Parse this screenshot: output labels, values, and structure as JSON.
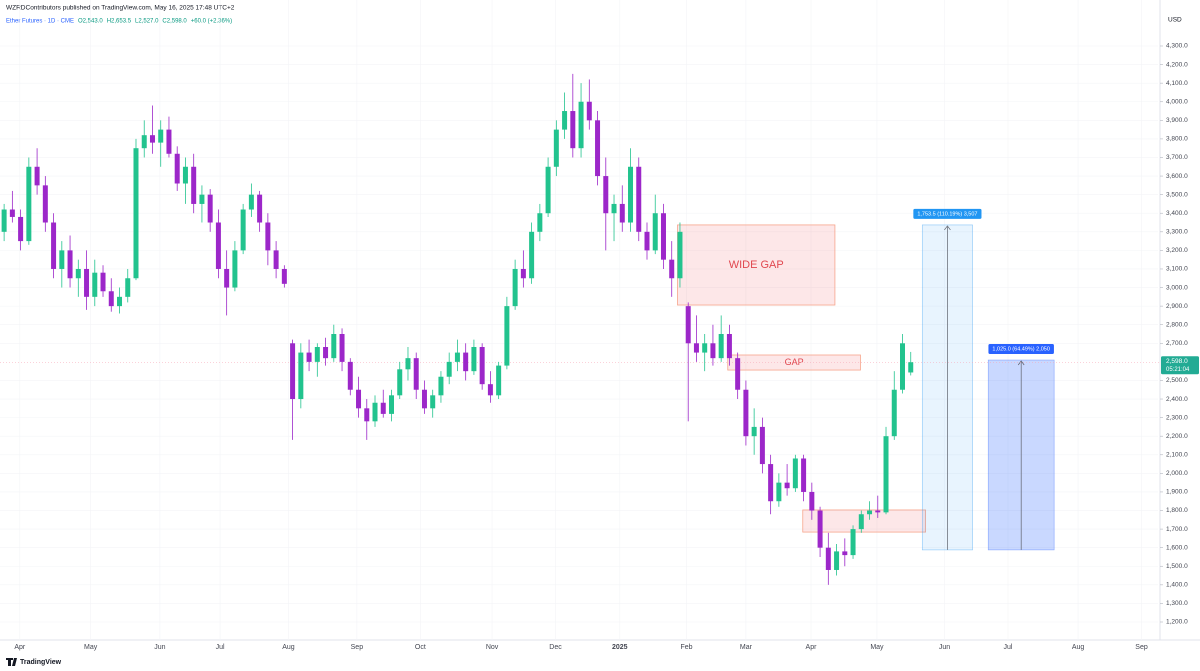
{
  "chart_data": {
    "type": "candlestick",
    "publisher": "WZRDContributors published on TradingView.com, May 16, 2025 17:48 UTC+2",
    "symbol": "Ether Futures · 1D · CME",
    "ohlc_text": [
      "O2,543.0",
      "H2,653.5",
      "L2,527.0",
      "C2,598.0",
      "+60.0 (+2.36%)"
    ],
    "currency": "USD",
    "logo": "TradingView",
    "up_color": "#22c38e",
    "down_color": "#9c27c9",
    "xlim": [
      -0.5,
      140
    ],
    "xticks": [
      {
        "value": 1.9,
        "label": "Apr"
      },
      {
        "value": 10.5,
        "label": "May"
      },
      {
        "value": 18.9,
        "label": "Jun"
      },
      {
        "value": 26.2,
        "label": "Jul"
      },
      {
        "value": 34.5,
        "label": "Aug"
      },
      {
        "value": 42.8,
        "label": "Sep"
      },
      {
        "value": 50.5,
        "label": "Oct"
      },
      {
        "value": 59.2,
        "label": "Nov"
      },
      {
        "value": 66.9,
        "label": "Dec"
      },
      {
        "value": 74.7,
        "label": "2025"
      },
      {
        "value": 82.8,
        "label": "Feb"
      },
      {
        "value": 90.0,
        "label": "Mar"
      },
      {
        "value": 97.9,
        "label": "Apr"
      },
      {
        "value": 105.9,
        "label": "May"
      },
      {
        "value": 114.1,
        "label": "Jun"
      },
      {
        "value": 121.8,
        "label": "Jul"
      },
      {
        "value": 130.3,
        "label": "Aug"
      },
      {
        "value": 138.0,
        "label": "Sep"
      }
    ],
    "ylim": [
      1200,
      4300
    ],
    "yticks": [
      {
        "value": 1200,
        "label": "1,200.0"
      },
      {
        "value": 1300,
        "label": "1,300.0"
      },
      {
        "value": 1400,
        "label": "1,400.0"
      },
      {
        "value": 1500,
        "label": "1,500.0"
      },
      {
        "value": 1600,
        "label": "1,600.0"
      },
      {
        "value": 1700,
        "label": "1,700.0"
      },
      {
        "value": 1800,
        "label": "1,800.0"
      },
      {
        "value": 1900,
        "label": "1,900.0"
      },
      {
        "value": 2000,
        "label": "2,000.0"
      },
      {
        "value": 2100,
        "label": "2,100.0"
      },
      {
        "value": 2200,
        "label": "2,200.0"
      },
      {
        "value": 2300,
        "label": "2,300.0"
      },
      {
        "value": 2400,
        "label": "2,400.0"
      },
      {
        "value": 2500,
        "label": "2,500.0"
      },
      {
        "value": 2700,
        "label": "2,700.0"
      },
      {
        "value": 2800,
        "label": "2,800.0"
      },
      {
        "value": 2900,
        "label": "2,900.0"
      },
      {
        "value": 3000,
        "label": "3,000.0"
      },
      {
        "value": 3100,
        "label": "3,100.0"
      },
      {
        "value": 3200,
        "label": "3,200.0"
      },
      {
        "value": 3300,
        "label": "3,300.0"
      },
      {
        "value": 3400,
        "label": "3,400.0"
      },
      {
        "value": 3500,
        "label": "3,500.0"
      },
      {
        "value": 3600,
        "label": "3,600.0"
      },
      {
        "value": 3700,
        "label": "3,700.0"
      },
      {
        "value": 3800,
        "label": "3,800.0"
      },
      {
        "value": 3900,
        "label": "3,900.0"
      },
      {
        "value": 4000,
        "label": "4,000.0"
      },
      {
        "value": 4100,
        "label": "4,100.0"
      },
      {
        "value": 4200,
        "label": "4,200.0"
      },
      {
        "value": 4300,
        "label": "4,300.0"
      }
    ],
    "last_price": {
      "value": 2598,
      "label": "2,598.0"
    },
    "countdown": "05:21:04",
    "candles": [
      [
        3300,
        3450,
        3250,
        3420
      ],
      [
        3420,
        3520,
        3350,
        3380
      ],
      [
        3380,
        3420,
        3200,
        3250
      ],
      [
        3250,
        3700,
        3230,
        3650
      ],
      [
        3650,
        3750,
        3500,
        3550
      ],
      [
        3550,
        3600,
        3300,
        3350
      ],
      [
        3350,
        3400,
        3050,
        3100
      ],
      [
        3100,
        3250,
        3000,
        3200
      ],
      [
        3200,
        3280,
        3000,
        3050
      ],
      [
        3050,
        3150,
        2950,
        3100
      ],
      [
        3100,
        3200,
        2880,
        2950
      ],
      [
        2950,
        3150,
        2900,
        3080
      ],
      [
        3080,
        3120,
        2950,
        2980
      ],
      [
        2980,
        3050,
        2870,
        2900
      ],
      [
        2900,
        3000,
        2860,
        2950
      ],
      [
        2950,
        3100,
        2920,
        3050
      ],
      [
        3050,
        3800,
        3040,
        3750
      ],
      [
        3750,
        3900,
        3700,
        3820
      ],
      [
        3820,
        3980,
        3720,
        3780
      ],
      [
        3780,
        3900,
        3650,
        3850
      ],
      [
        3850,
        3920,
        3700,
        3720
      ],
      [
        3720,
        3760,
        3520,
        3560
      ],
      [
        3560,
        3700,
        3450,
        3650
      ],
      [
        3650,
        3720,
        3400,
        3450
      ],
      [
        3450,
        3550,
        3350,
        3500
      ],
      [
        3500,
        3530,
        3300,
        3350
      ],
      [
        3350,
        3420,
        3050,
        3100
      ],
      [
        3100,
        3200,
        2850,
        3000
      ],
      [
        3000,
        3250,
        2980,
        3200
      ],
      [
        3200,
        3450,
        3180,
        3420
      ],
      [
        3420,
        3560,
        3380,
        3500
      ],
      [
        3500,
        3520,
        3300,
        3350
      ],
      [
        3350,
        3400,
        3120,
        3200
      ],
      [
        3200,
        3250,
        3050,
        3100
      ],
      [
        3100,
        3120,
        3000,
        3020
      ],
      [
        2700,
        2720,
        2180,
        2400
      ],
      [
        2400,
        2700,
        2350,
        2650
      ],
      [
        2650,
        2720,
        2550,
        2600
      ],
      [
        2600,
        2700,
        2520,
        2680
      ],
      [
        2680,
        2730,
        2580,
        2620
      ],
      [
        2620,
        2800,
        2600,
        2750
      ],
      [
        2750,
        2780,
        2550,
        2600
      ],
      [
        2600,
        2620,
        2420,
        2450
      ],
      [
        2450,
        2520,
        2300,
        2350
      ],
      [
        2350,
        2400,
        2180,
        2280
      ],
      [
        2280,
        2420,
        2250,
        2380
      ],
      [
        2380,
        2450,
        2300,
        2320
      ],
      [
        2320,
        2450,
        2280,
        2420
      ],
      [
        2420,
        2600,
        2400,
        2560
      ],
      [
        2560,
        2680,
        2500,
        2620
      ],
      [
        2620,
        2650,
        2400,
        2450
      ],
      [
        2450,
        2500,
        2320,
        2350
      ],
      [
        2350,
        2450,
        2300,
        2420
      ],
      [
        2420,
        2550,
        2380,
        2520
      ],
      [
        2520,
        2650,
        2480,
        2600
      ],
      [
        2600,
        2720,
        2550,
        2650
      ],
      [
        2650,
        2700,
        2500,
        2550
      ],
      [
        2550,
        2720,
        2530,
        2680
      ],
      [
        2680,
        2700,
        2450,
        2480
      ],
      [
        2480,
        2550,
        2380,
        2420
      ],
      [
        2420,
        2600,
        2400,
        2580
      ],
      [
        2580,
        2950,
        2560,
        2900
      ],
      [
        2900,
        3150,
        2880,
        3100
      ],
      [
        3100,
        3200,
        3000,
        3050
      ],
      [
        3050,
        3350,
        3020,
        3300
      ],
      [
        3300,
        3450,
        3250,
        3400
      ],
      [
        3400,
        3700,
        3380,
        3650
      ],
      [
        3650,
        3900,
        3600,
        3850
      ],
      [
        3850,
        4050,
        3800,
        3950
      ],
      [
        3950,
        4150,
        3700,
        3750
      ],
      [
        3750,
        4100,
        3700,
        4000
      ],
      [
        4000,
        4120,
        3850,
        3900
      ],
      [
        3900,
        3950,
        3550,
        3600
      ],
      [
        3600,
        3700,
        3200,
        3400
      ],
      [
        3400,
        3500,
        3250,
        3450
      ],
      [
        3450,
        3550,
        3300,
        3350
      ],
      [
        3350,
        3750,
        3300,
        3650
      ],
      [
        3650,
        3700,
        3250,
        3300
      ],
      [
        3300,
        3350,
        3150,
        3200
      ],
      [
        3200,
        3500,
        3180,
        3400
      ],
      [
        3400,
        3450,
        3100,
        3150
      ],
      [
        3150,
        3250,
        2950,
        3050
      ],
      [
        3050,
        3350,
        3000,
        3300
      ],
      [
        2900,
        2920,
        2280,
        2700
      ],
      [
        2700,
        2850,
        2600,
        2650
      ],
      [
        2650,
        2750,
        2550,
        2700
      ],
      [
        2700,
        2800,
        2580,
        2620
      ],
      [
        2620,
        2850,
        2600,
        2750
      ],
      [
        2750,
        2800,
        2580,
        2620
      ],
      [
        2620,
        2650,
        2400,
        2450
      ],
      [
        2450,
        2500,
        2150,
        2200
      ],
      [
        2200,
        2350,
        2100,
        2250
      ],
      [
        2250,
        2300,
        2000,
        2050
      ],
      [
        2050,
        2100,
        1780,
        1850
      ],
      [
        1850,
        2000,
        1820,
        1950
      ],
      [
        1950,
        2050,
        1880,
        1920
      ],
      [
        1920,
        2100,
        1900,
        2080
      ],
      [
        2080,
        2100,
        1850,
        1900
      ],
      [
        1900,
        1950,
        1750,
        1800
      ],
      [
        1800,
        1820,
        1550,
        1600
      ],
      [
        1600,
        1680,
        1400,
        1480
      ],
      [
        1480,
        1620,
        1450,
        1580
      ],
      [
        1580,
        1650,
        1500,
        1560
      ],
      [
        1560,
        1720,
        1540,
        1700
      ],
      [
        1700,
        1800,
        1680,
        1780
      ],
      [
        1780,
        1850,
        1750,
        1800
      ],
      [
        1800,
        1880,
        1760,
        1790
      ],
      [
        1790,
        2250,
        1780,
        2200
      ],
      [
        2200,
        2550,
        2180,
        2450
      ],
      [
        2450,
        2750,
        2430,
        2700
      ],
      [
        2543,
        2653.5,
        2527,
        2598
      ]
    ],
    "zones": [
      {
        "label": "WIDE GAP",
        "x": [
          81.7,
          100.8
        ],
        "y": [
          2906,
          3337
        ]
      },
      {
        "label": "GAP",
        "x": [
          87.8,
          103.9
        ],
        "y": [
          2556,
          2637
        ]
      },
      {
        "x": [
          96.9,
          111.8
        ],
        "y": [
          1684,
          1803
        ]
      }
    ],
    "measures": [
      {
        "label": "1,753.5 (110.19%) 3,507",
        "x": [
          111.4,
          117.5
        ],
        "y": [
          1588,
          3337
        ],
        "color": "#2196f3"
      },
      {
        "label": "1,025.0 (64.49%) 2,050",
        "x": [
          119.4,
          127.4
        ],
        "y": [
          1588,
          2610
        ],
        "color": "#2962ff"
      }
    ]
  }
}
